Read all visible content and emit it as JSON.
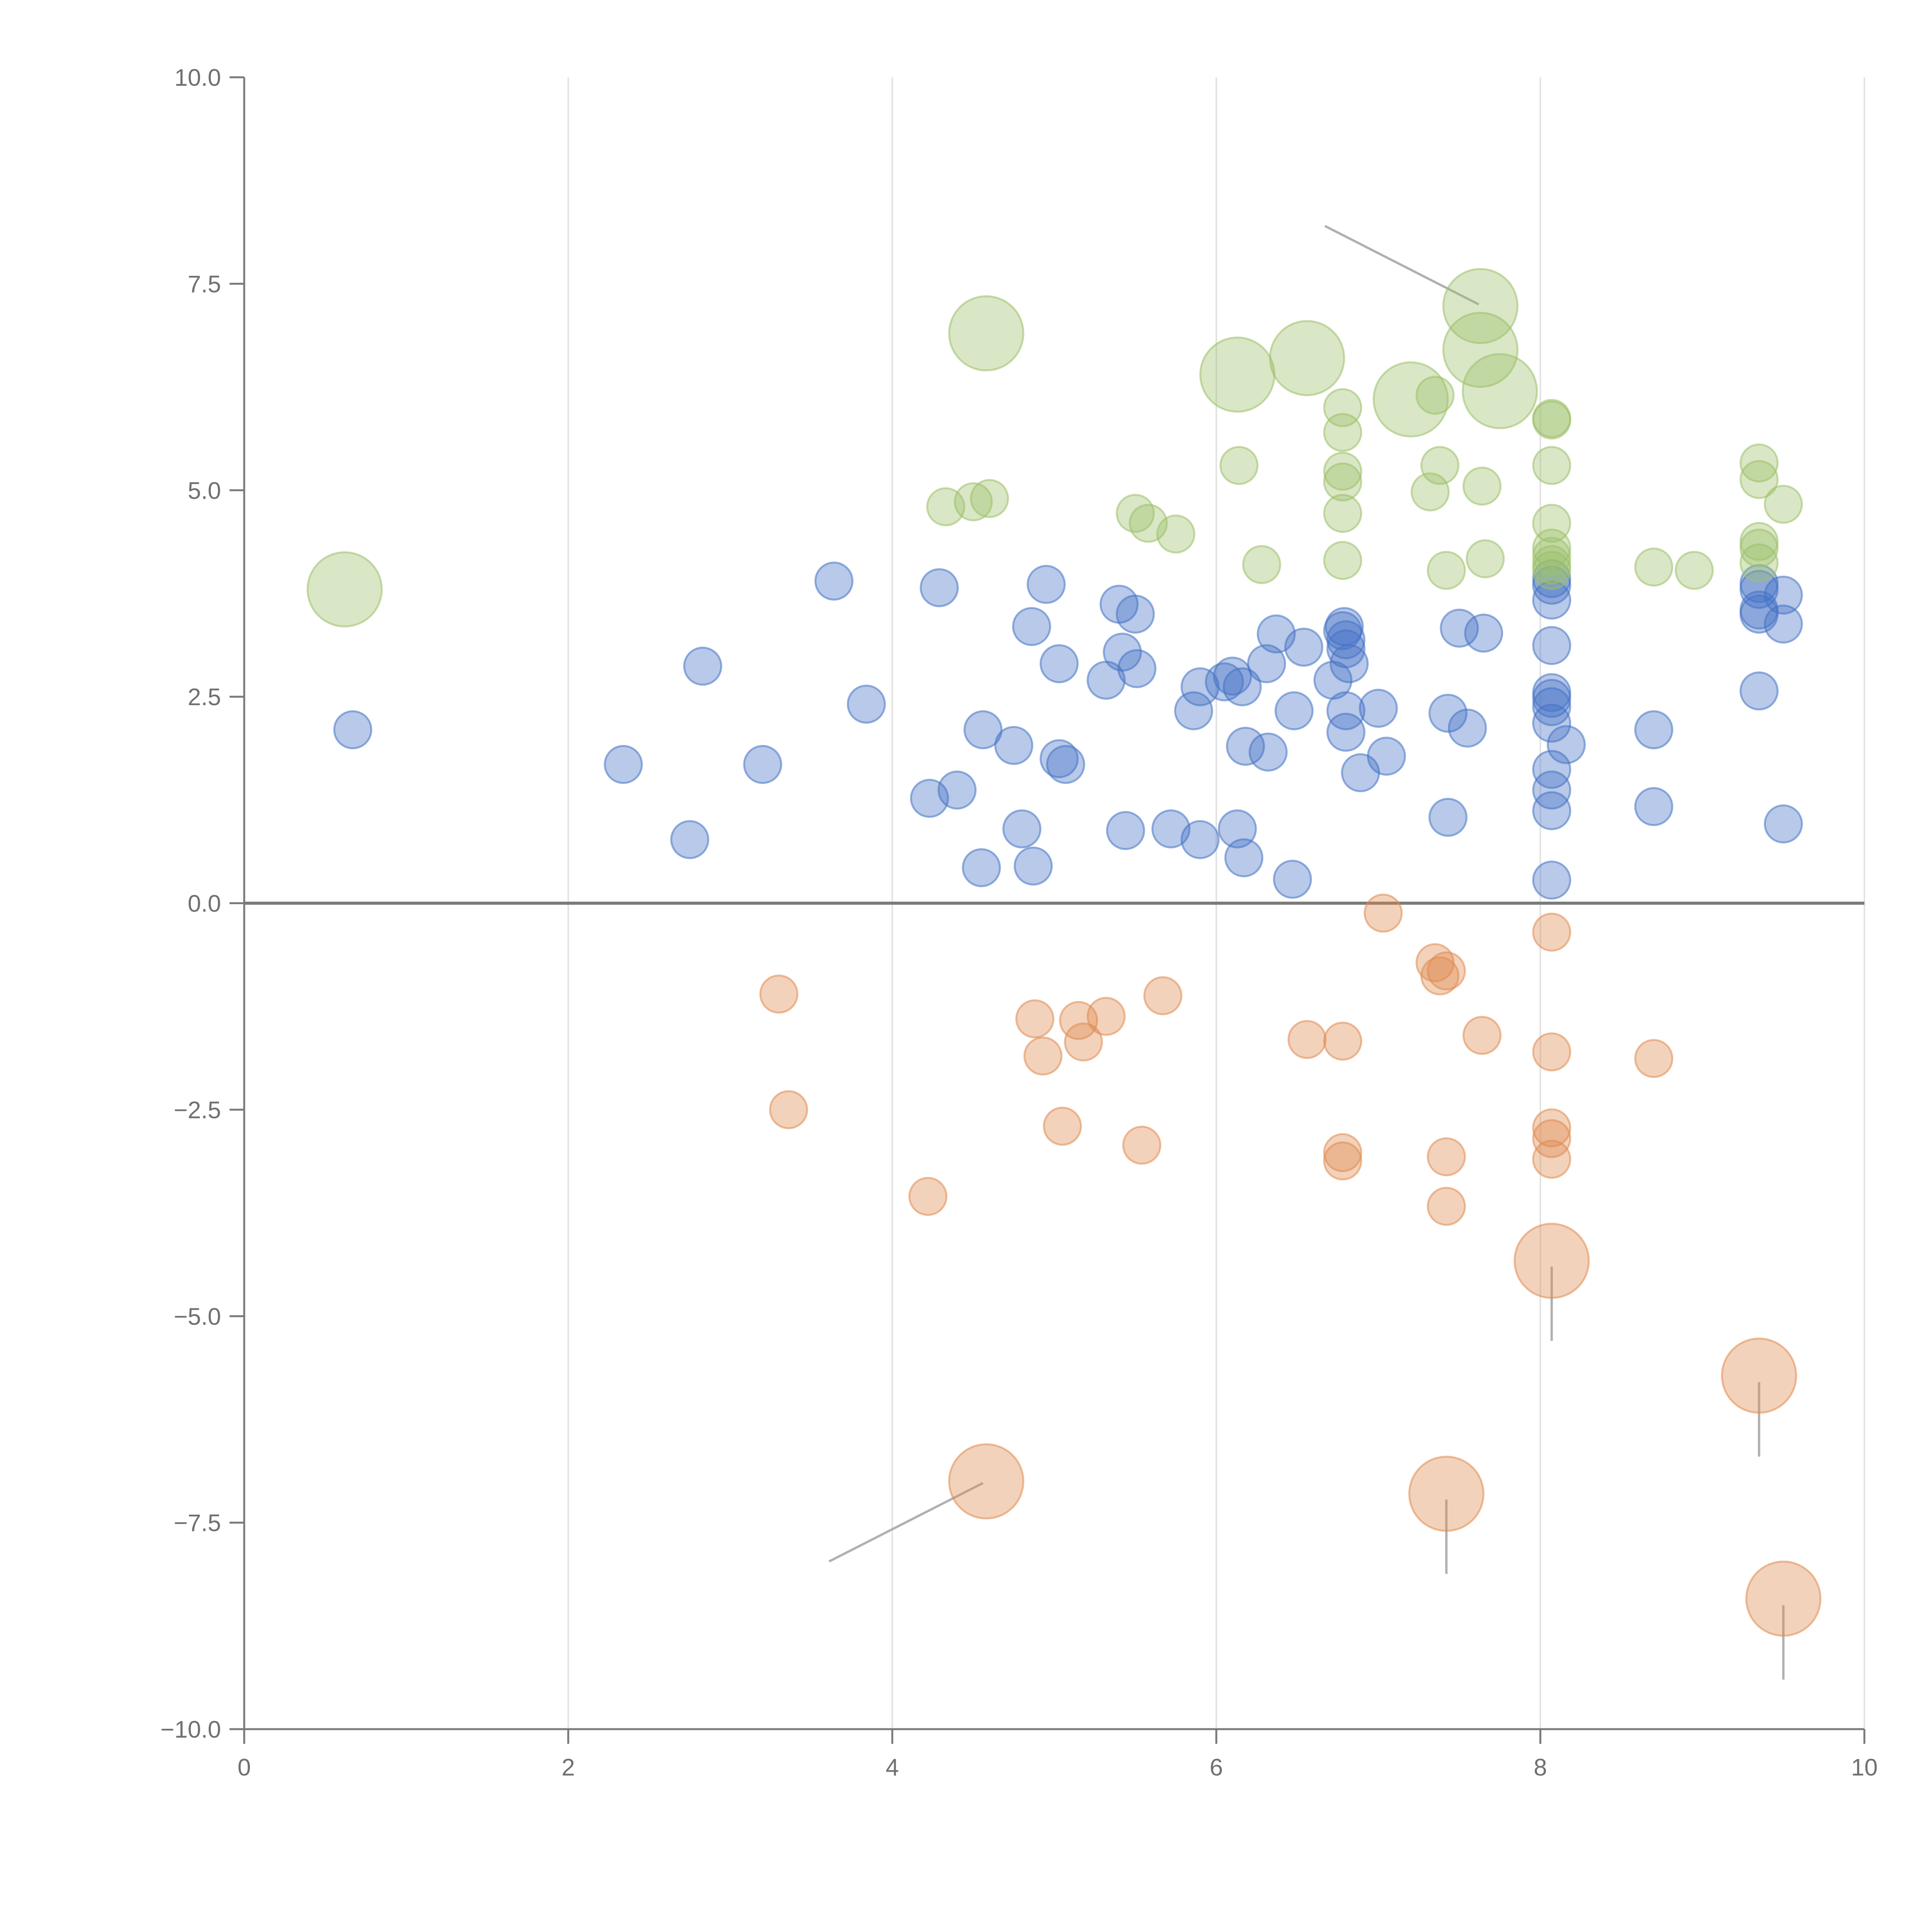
{
  "chart_data": {
    "type": "scatter",
    "title": "",
    "xlabel": "",
    "ylabel": "",
    "xlim": [
      0,
      10
    ],
    "ylim": [
      -10,
      10
    ],
    "x_ticks": [
      0,
      2,
      4,
      6,
      8,
      10
    ],
    "y_ticks": [
      10.0,
      7.5,
      5.0,
      2.5,
      0.0,
      -2.5,
      -5.0,
      -7.5,
      -10.0
    ],
    "x_tick_labels": [
      "0",
      "2",
      "4",
      "6",
      "8",
      "10"
    ],
    "y_tick_labels": [
      "10.0",
      "7.5",
      "5.0",
      "2.5",
      "0.0",
      "−2.5",
      "−5.0",
      "−7.5",
      "−10.0"
    ],
    "grid": "vertical",
    "legend": "none",
    "series": [
      {
        "name": "blue",
        "color": "#4472c4",
        "points": [
          [
            0.67,
            2.1
          ],
          [
            2.34,
            1.68
          ],
          [
            2.75,
            0.77
          ],
          [
            2.83,
            2.87
          ],
          [
            3.2,
            1.68
          ],
          [
            3.64,
            3.9
          ],
          [
            3.84,
            2.41
          ],
          [
            4.23,
            1.27
          ],
          [
            4.29,
            3.82
          ],
          [
            4.4,
            1.37
          ],
          [
            4.55,
            0.43
          ],
          [
            4.56,
            2.1
          ],
          [
            4.75,
            1.91
          ],
          [
            4.8,
            0.9
          ],
          [
            4.86,
            3.35
          ],
          [
            4.87,
            0.45
          ],
          [
            4.95,
            3.86
          ],
          [
            5.03,
            2.9
          ],
          [
            5.03,
            1.75
          ],
          [
            5.07,
            1.68
          ],
          [
            5.32,
            2.7
          ],
          [
            5.4,
            3.62
          ],
          [
            5.42,
            3.04
          ],
          [
            5.44,
            0.88
          ],
          [
            5.5,
            3.5
          ],
          [
            5.51,
            2.84
          ],
          [
            5.72,
            0.9
          ],
          [
            5.9,
            0.77
          ],
          [
            5.86,
            2.33
          ],
          [
            5.9,
            2.62
          ],
          [
            6.05,
            2.68
          ],
          [
            6.1,
            2.75
          ],
          [
            6.16,
            2.62
          ],
          [
            6.13,
            0.9
          ],
          [
            6.17,
            0.55
          ],
          [
            6.18,
            1.9
          ],
          [
            6.31,
            2.9
          ],
          [
            6.32,
            1.83
          ],
          [
            6.37,
            3.26
          ],
          [
            6.48,
            2.33
          ],
          [
            6.47,
            0.29
          ],
          [
            6.54,
            3.1
          ],
          [
            6.72,
            2.7
          ],
          [
            6.78,
            3.3
          ],
          [
            6.79,
            3.35
          ],
          [
            6.8,
            3.19
          ],
          [
            6.8,
            3.08
          ],
          [
            6.8,
            2.33
          ],
          [
            6.8,
            2.07
          ],
          [
            6.82,
            2.9
          ],
          [
            6.89,
            1.58
          ],
          [
            7.0,
            2.36
          ],
          [
            7.05,
            1.78
          ],
          [
            7.43,
            1.04
          ],
          [
            7.43,
            2.3
          ],
          [
            7.5,
            3.33
          ],
          [
            7.55,
            2.12
          ],
          [
            7.65,
            3.27
          ],
          [
            8.07,
            0.28
          ],
          [
            8.07,
            1.12
          ],
          [
            8.07,
            1.37
          ],
          [
            8.07,
            1.62
          ],
          [
            8.07,
            2.18
          ],
          [
            8.07,
            2.38
          ],
          [
            8.07,
            2.48
          ],
          [
            8.07,
            2.55
          ],
          [
            8.07,
            3.12
          ],
          [
            8.07,
            3.67
          ],
          [
            8.07,
            3.93
          ],
          [
            8.07,
            3.85
          ],
          [
            8.16,
            1.92
          ],
          [
            8.7,
            1.17
          ],
          [
            8.7,
            2.1
          ],
          [
            9.35,
            2.57
          ],
          [
            9.35,
            3.55
          ],
          [
            9.35,
            3.8
          ],
          [
            9.35,
            3.87
          ],
          [
            9.35,
            3.5
          ],
          [
            9.5,
            3.73
          ],
          [
            9.5,
            3.38
          ],
          [
            9.5,
            0.96
          ]
        ],
        "large": []
      },
      {
        "name": "green",
        "color": "#9cc068",
        "points": [
          [
            4.33,
            4.8
          ],
          [
            4.5,
            4.86
          ],
          [
            4.6,
            4.9
          ],
          [
            5.5,
            4.72
          ],
          [
            5.58,
            4.6
          ],
          [
            5.75,
            4.47
          ],
          [
            6.14,
            5.3
          ],
          [
            6.28,
            4.1
          ],
          [
            6.78,
            4.15
          ],
          [
            6.78,
            4.72
          ],
          [
            6.78,
            5.1
          ],
          [
            6.78,
            5.23
          ],
          [
            6.78,
            5.7
          ],
          [
            6.78,
            6.0
          ],
          [
            7.32,
            4.98
          ],
          [
            7.35,
            6.15
          ],
          [
            7.38,
            5.3
          ],
          [
            7.42,
            4.03
          ],
          [
            7.64,
            5.05
          ],
          [
            7.66,
            4.17
          ],
          [
            8.07,
            5.87
          ],
          [
            8.07,
            5.85
          ],
          [
            8.07,
            5.3
          ],
          [
            8.07,
            4.6
          ],
          [
            8.07,
            4.3
          ],
          [
            8.07,
            4.2
          ],
          [
            8.07,
            4.1
          ],
          [
            8.07,
            4.03
          ],
          [
            8.7,
            4.07
          ],
          [
            8.95,
            4.03
          ],
          [
            9.35,
            5.33
          ],
          [
            9.35,
            5.13
          ],
          [
            9.35,
            4.38
          ],
          [
            9.35,
            4.3
          ],
          [
            9.35,
            4.12
          ],
          [
            9.5,
            4.83
          ]
        ],
        "large": [
          [
            0.62,
            3.8
          ],
          [
            4.58,
            6.9
          ],
          [
            6.13,
            6.4
          ],
          [
            6.56,
            6.6
          ],
          [
            7.2,
            6.1
          ],
          [
            7.63,
            7.23
          ],
          [
            7.63,
            6.7
          ],
          [
            7.75,
            6.2
          ]
        ]
      },
      {
        "name": "orange",
        "color": "#e08a4f",
        "points": [
          [
            3.3,
            -1.1
          ],
          [
            3.36,
            -2.5
          ],
          [
            4.22,
            -3.55
          ],
          [
            4.88,
            -1.4
          ],
          [
            4.93,
            -1.85
          ],
          [
            5.05,
            -2.7
          ],
          [
            5.15,
            -1.42
          ],
          [
            5.18,
            -1.68
          ],
          [
            5.32,
            -1.37
          ],
          [
            5.54,
            -2.93
          ],
          [
            5.67,
            -1.12
          ],
          [
            6.56,
            -1.65
          ],
          [
            6.78,
            -1.67
          ],
          [
            6.78,
            -3.02
          ],
          [
            6.78,
            -3.12
          ],
          [
            7.03,
            -0.12
          ],
          [
            7.35,
            -0.72
          ],
          [
            7.38,
            -0.88
          ],
          [
            7.42,
            -0.82
          ],
          [
            7.42,
            -3.07
          ],
          [
            7.42,
            -3.67
          ],
          [
            7.64,
            -1.6
          ],
          [
            8.07,
            -0.35
          ],
          [
            8.07,
            -1.8
          ],
          [
            8.07,
            -2.72
          ],
          [
            8.07,
            -2.85
          ],
          [
            8.07,
            -3.1
          ],
          [
            8.7,
            -1.88
          ]
        ],
        "large": [
          [
            4.58,
            -7.0
          ],
          [
            7.42,
            -7.15
          ],
          [
            8.07,
            -4.33
          ],
          [
            9.35,
            -5.72
          ],
          [
            9.5,
            -8.42
          ]
        ]
      }
    ],
    "annotation_lines": [
      {
        "color": "#b0b0b0",
        "from": [
          7.62,
          7.25
        ],
        "to": [
          6.67,
          8.2
        ]
      },
      {
        "color": "#b0b0b0",
        "from": [
          4.56,
          -7.02
        ],
        "to": [
          3.61,
          -7.97
        ]
      },
      {
        "color": "#b0b0b0",
        "from": [
          8.07,
          -4.4
        ],
        "to": [
          8.07,
          -5.3
        ]
      },
      {
        "color": "#b0b0b0",
        "from": [
          9.35,
          -5.8
        ],
        "to": [
          9.35,
          -6.7
        ]
      },
      {
        "color": "#b0b0b0",
        "from": [
          7.42,
          -7.22
        ],
        "to": [
          7.42,
          -8.12
        ]
      },
      {
        "color": "#b0b0b0",
        "from": [
          9.5,
          -8.5
        ],
        "to": [
          9.5,
          -9.4
        ]
      }
    ]
  }
}
